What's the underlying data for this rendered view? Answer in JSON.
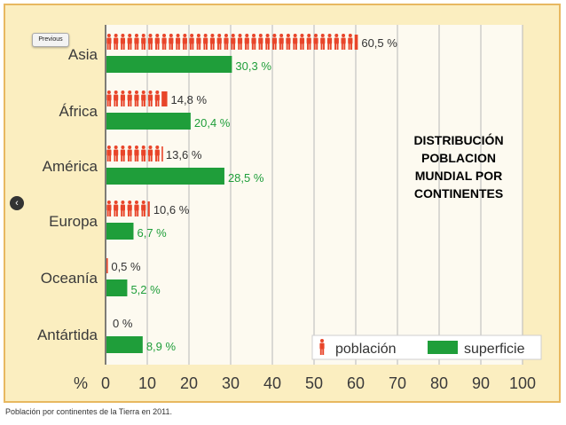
{
  "ui": {
    "previous_label": "Previous",
    "back_symbol": "‹",
    "caption": "Población por continentes de la Tierra en 2011."
  },
  "overlay": {
    "title_lines": [
      "DISTRIBUCIÓN",
      "POBLACION",
      "MUNDIAL POR",
      "CONTINENTES"
    ]
  },
  "colors": {
    "population": "#e8452a",
    "surface": "#1f9e3a",
    "population_label": "#333333",
    "surface_label": "#1f9e3a",
    "grid": "#b8b8b8",
    "panel_bg": "#fdfaf0"
  },
  "chart_data": {
    "type": "bar",
    "orientation": "horizontal",
    "categories": [
      "Asia",
      "África",
      "América",
      "Europa",
      "Oceanía",
      "Antártida"
    ],
    "series": [
      {
        "name": "población",
        "values": [
          60.5,
          14.8,
          13.6,
          10.6,
          0.5,
          0
        ],
        "labels": [
          "60,5 %",
          "14,8 %",
          "13,6 %",
          "10,6 %",
          "0,5 %",
          "0 %"
        ]
      },
      {
        "name": "superficie",
        "values": [
          30.3,
          20.4,
          28.5,
          6.7,
          5.2,
          8.9
        ],
        "labels": [
          "30,3 %",
          "20,4 %",
          "28,5 %",
          "6,7 %",
          "5,2 %",
          "8,9 %"
        ]
      }
    ],
    "xlabel": "%",
    "xlim": [
      0,
      100
    ],
    "xticks": [
      0,
      10,
      20,
      30,
      40,
      50,
      60,
      70,
      80,
      90,
      100
    ],
    "grid": true,
    "legend": {
      "position": "bottom-right",
      "entries": [
        "población",
        "superficie"
      ]
    }
  }
}
